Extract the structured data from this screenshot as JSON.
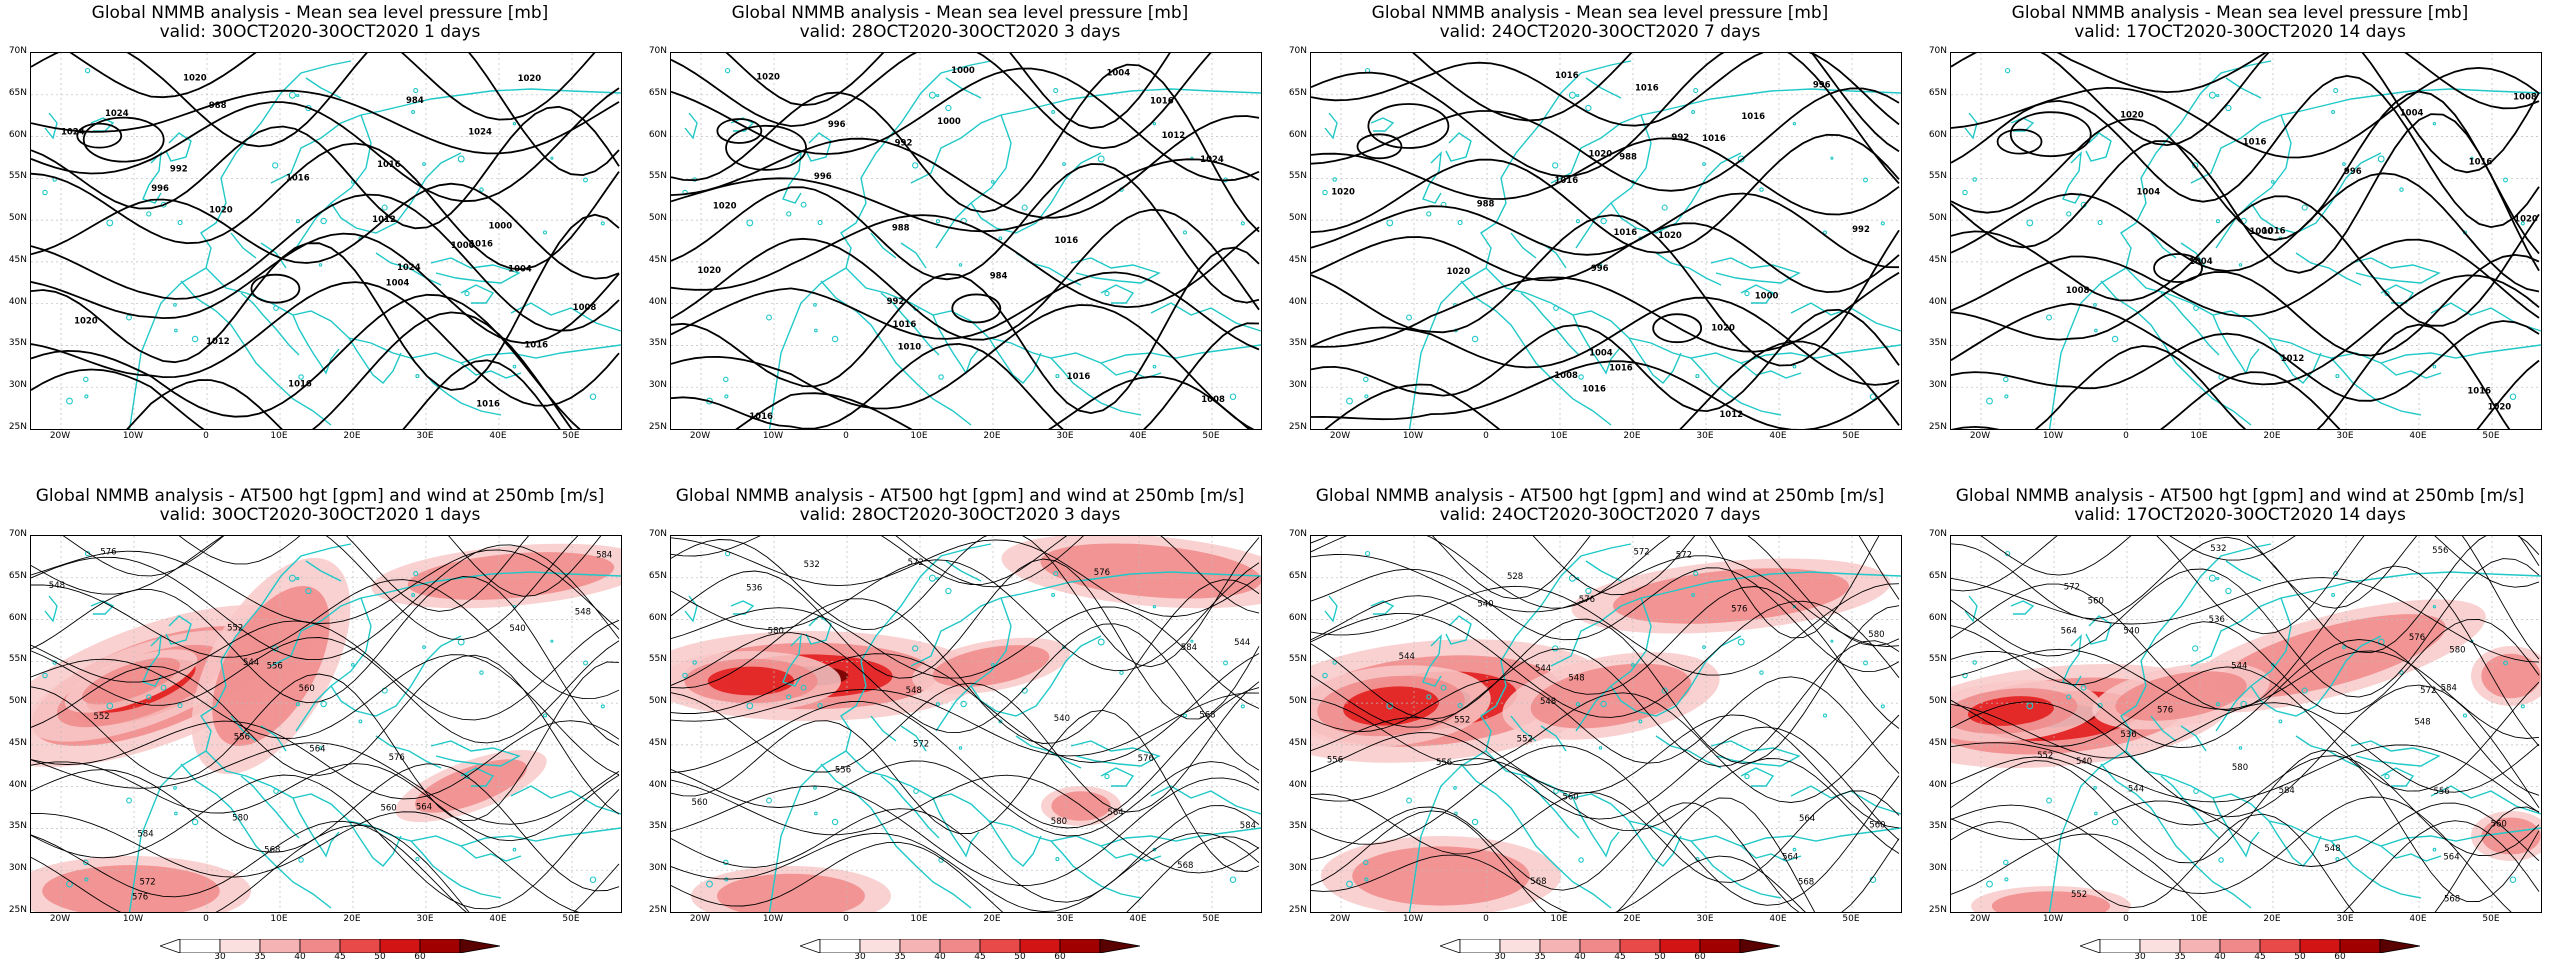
{
  "panels": [
    {
      "title": "Global NMMB analysis - Mean sea level pressure [mb]",
      "valid": "valid: 30OCT2020-30OCT2020   1 days",
      "type": "mslp",
      "labels": [
        "984",
        "988",
        "992",
        "996",
        "1000",
        "1004",
        "1008",
        "1012",
        "1016",
        "1020",
        "1024",
        "1024",
        "1016",
        "1012",
        "1000",
        "1004",
        "1020",
        "1016",
        "1016",
        "1020",
        "1024",
        "1016",
        "1020",
        "1016",
        "1024"
      ]
    },
    {
      "title": "Global NMMB analysis - Mean sea level pressure [mb]",
      "valid": "valid: 28OCT2020-30OCT2020   3 days",
      "type": "mslp",
      "labels": [
        "1004",
        "1000",
        "992",
        "996",
        "988",
        "984",
        "992",
        "1010",
        "1008",
        "1000",
        "1016",
        "1012",
        "1024",
        "1020",
        "1016",
        "1020",
        "1016",
        "1016",
        "1016",
        "1020",
        "996"
      ]
    },
    {
      "title": "Global NMMB analysis - Mean sea level pressure [mb]",
      "valid": "valid: 24OCT2020-30OCT2020   7 days",
      "type": "mslp",
      "labels": [
        "996",
        "992",
        "988",
        "988",
        "992",
        "996",
        "1000",
        "1004",
        "1008",
        "1012",
        "1016",
        "1016",
        "1016",
        "1016",
        "1020",
        "1020",
        "1020",
        "1016",
        "1016",
        "1016",
        "1016",
        "1020",
        "1020"
      ]
    },
    {
      "title": "Global NMMB analysis - Mean sea level pressure [mb]",
      "valid": "valid: 17OCT2020-30OCT2020   14 days",
      "type": "mslp",
      "labels": [
        "1008",
        "1004",
        "996",
        "1004",
        "1000",
        "1004",
        "1008",
        "1012",
        "1016",
        "1020",
        "1020",
        "1016",
        "1016",
        "1020",
        "1016"
      ]
    },
    {
      "title": "Global NMMB analysis - AT500 hgt [gpm] and wind at 250mb [m/s]",
      "valid": "valid: 30OCT2020-30OCT2020   1 days",
      "type": "z500",
      "labels": [
        "576",
        "548",
        "540",
        "544",
        "552",
        "556",
        "560",
        "564",
        "568",
        "572",
        "548",
        "552",
        "556",
        "560",
        "564",
        "576",
        "580",
        "584",
        "576",
        "584"
      ]
    },
    {
      "title": "Global NMMB analysis - AT500 hgt [gpm] and wind at 250mb [m/s]",
      "valid": "valid: 28OCT2020-30OCT2020   3 days",
      "type": "z500",
      "labels": [
        "532",
        "536",
        "544",
        "548",
        "540",
        "556",
        "560",
        "564",
        "568",
        "572",
        "576",
        "580",
        "584",
        "568",
        "572",
        "576",
        "580",
        "584"
      ]
    },
    {
      "title": "Global NMMB analysis - AT500 hgt [gpm] and wind at 250mb [m/s]",
      "valid": "valid: 24OCT2020-30OCT2020   7 days",
      "type": "z500",
      "labels": [
        "528",
        "540",
        "544",
        "548",
        "552",
        "556",
        "560",
        "564",
        "568",
        "572",
        "576",
        "580",
        "544",
        "548",
        "552",
        "556",
        "560",
        "564",
        "568",
        "572",
        "576"
      ]
    },
    {
      "title": "Global NMMB analysis - AT500 hgt [gpm] and wind at 250mb [m/s]",
      "valid": "valid: 17OCT2020-30OCT2020   14 days",
      "type": "z500",
      "labels": [
        "532",
        "536",
        "540",
        "544",
        "548",
        "552",
        "556",
        "560",
        "564",
        "568",
        "572",
        "576",
        "580",
        "584",
        "536",
        "540",
        "544",
        "548",
        "552",
        "556",
        "560",
        "564",
        "572",
        "576",
        "580",
        "584"
      ]
    }
  ],
  "lat_labels": [
    "70N",
    "65N",
    "60N",
    "55N",
    "50N",
    "45N",
    "40N",
    "35N",
    "30N",
    "25N"
  ],
  "lon_labels": [
    "20W",
    "10W",
    "0",
    "10E",
    "20E",
    "30E",
    "40E",
    "50E"
  ],
  "colorbar": {
    "labels": [
      "30",
      "35",
      "40",
      "45",
      "50",
      "60"
    ]
  },
  "colors": {
    "coast": "#20c8c8",
    "contour": "#000000",
    "jet_light": "#f9c9c9",
    "jet_mid": "#f08a8a",
    "jet_strong": "#e21818",
    "jet_max": "#6e0000"
  }
}
